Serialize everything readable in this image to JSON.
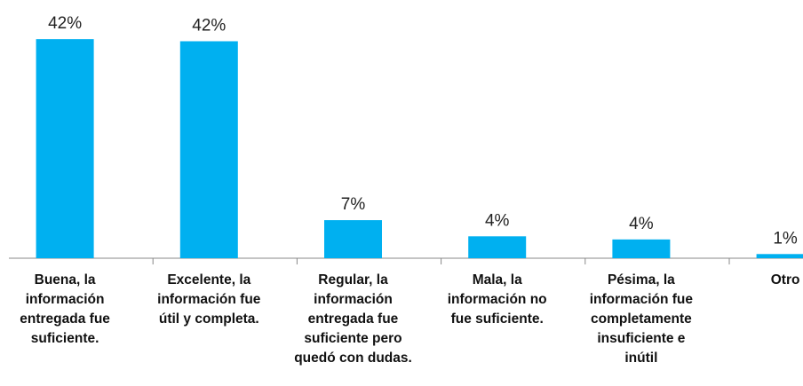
{
  "chart_data": {
    "type": "bar",
    "categories": [
      "Buena, la\ninformación\nentregada fue\nsuficiente.",
      "Excelente, la\ninformación fue\nútil y completa.",
      "Regular, la\ninformación\nentregada fue\nsuficiente pero\nquedó con dudas.",
      "Mala, la\ninformación no\nfue suficiente.",
      "Pésima, la\ninformación fue\ncompletamente\ninsuficiente e\ninútil",
      "Otro"
    ],
    "values": [
      42.0,
      41.6,
      7.3,
      4.2,
      3.6,
      0.8
    ],
    "value_labels": [
      "42%",
      "42%",
      "7%",
      "4%",
      "4%",
      "1%"
    ],
    "color": "#00b0f0",
    "ylim": [
      0,
      45
    ]
  }
}
